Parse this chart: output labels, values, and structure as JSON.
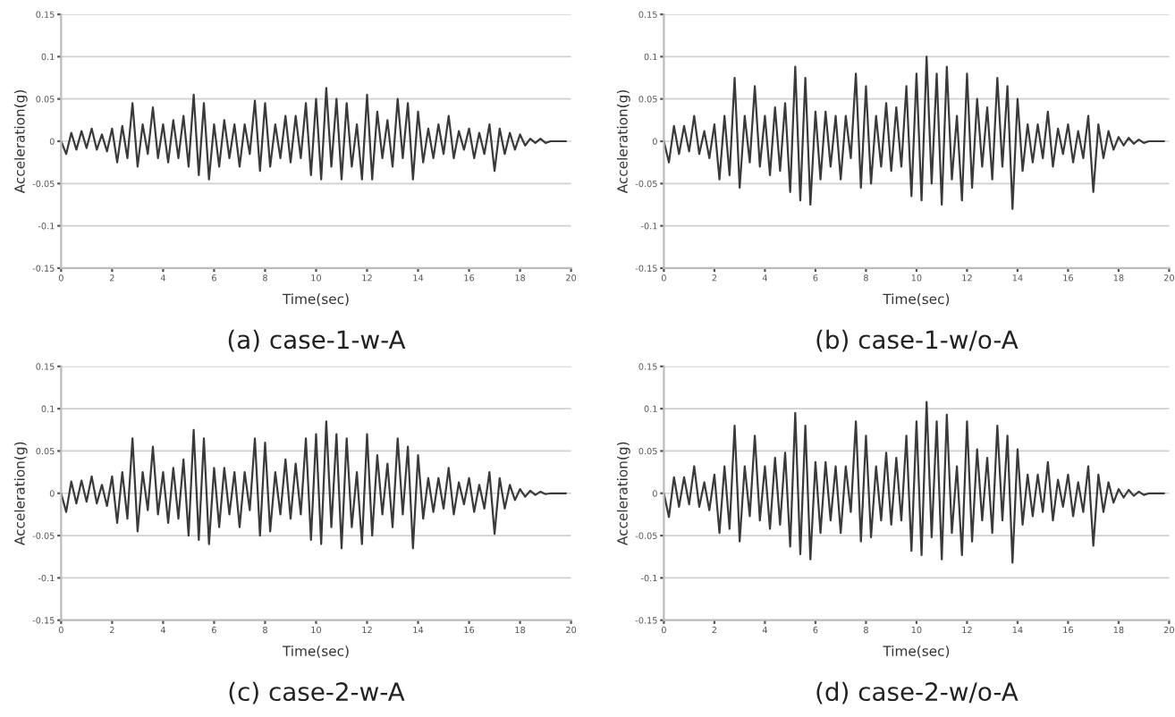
{
  "chart_data": [
    {
      "type": "line",
      "title": "(a) case-1-w-A",
      "xlabel": "Time(sec)",
      "ylabel": "Acceleration(g)",
      "xlim": [
        0,
        20
      ],
      "xticks": [
        0,
        2,
        4,
        6,
        8,
        10,
        12,
        14,
        16,
        18,
        20
      ],
      "ylim": [
        -0.15,
        0.15
      ],
      "yticks": [
        -0.15,
        -0.1,
        -0.05,
        0,
        0.05,
        0.1,
        0.15
      ],
      "grid": "y",
      "x": [
        0,
        0.2,
        0.4,
        0.6,
        0.8,
        1,
        1.2,
        1.4,
        1.6,
        1.8,
        2,
        2.2,
        2.4,
        2.6,
        2.8,
        3,
        3.2,
        3.4,
        3.6,
        3.8,
        4,
        4.2,
        4.4,
        4.6,
        4.8,
        5,
        5.2,
        5.4,
        5.6,
        5.8,
        6,
        6.2,
        6.4,
        6.6,
        6.8,
        7,
        7.2,
        7.4,
        7.6,
        7.8,
        8,
        8.2,
        8.4,
        8.6,
        8.8,
        9,
        9.2,
        9.4,
        9.6,
        9.8,
        10,
        10.2,
        10.4,
        10.6,
        10.8,
        11,
        11.2,
        11.4,
        11.6,
        11.8,
        12,
        12.2,
        12.4,
        12.6,
        12.8,
        13,
        13.2,
        13.4,
        13.6,
        13.8,
        14,
        14.2,
        14.4,
        14.6,
        14.8,
        15,
        15.2,
        15.4,
        15.6,
        15.8,
        16,
        16.2,
        16.4,
        16.6,
        16.8,
        17,
        17.2,
        17.4,
        17.6,
        17.8,
        18,
        18.2,
        18.4,
        18.6,
        18.8,
        19,
        19.2,
        19.4,
        19.6,
        19.8
      ],
      "series": [
        {
          "color": "#3a3a3a",
          "values": [
            0,
            -0.015,
            0.01,
            -0.01,
            0.012,
            -0.008,
            0.015,
            -0.01,
            0.008,
            -0.012,
            0.015,
            -0.025,
            0.018,
            -0.02,
            0.045,
            -0.03,
            0.02,
            -0.015,
            0.04,
            -0.02,
            0.02,
            -0.025,
            0.025,
            -0.02,
            0.03,
            -0.03,
            0.055,
            -0.04,
            0.045,
            -0.045,
            0.02,
            -0.03,
            0.025,
            -0.02,
            0.02,
            -0.03,
            0.02,
            -0.015,
            0.048,
            -0.035,
            0.045,
            -0.03,
            0.02,
            -0.02,
            0.03,
            -0.025,
            0.03,
            -0.02,
            0.045,
            -0.04,
            0.05,
            -0.045,
            0.063,
            -0.03,
            0.05,
            -0.045,
            0.045,
            -0.03,
            0.02,
            -0.045,
            0.055,
            -0.045,
            0.035,
            -0.02,
            0.025,
            -0.03,
            0.05,
            -0.02,
            0.045,
            -0.045,
            0.035,
            -0.025,
            0.015,
            -0.02,
            0.02,
            -0.015,
            0.03,
            -0.02,
            0.012,
            -0.01,
            0.015,
            -0.02,
            0.01,
            -0.015,
            0.02,
            -0.035,
            0.015,
            -0.015,
            0.01,
            -0.01,
            0.008,
            -0.005,
            0.003,
            -0.002,
            0.003,
            -0.002,
            0,
            0,
            0,
            0
          ]
        }
      ]
    },
    {
      "type": "line",
      "title": "(b) case-1-w/o-A",
      "xlabel": "Time(sec)",
      "ylabel": "Acceleration(g)",
      "xlim": [
        0,
        20
      ],
      "xticks": [
        0,
        2,
        4,
        6,
        8,
        10,
        12,
        14,
        16,
        18,
        20
      ],
      "ylim": [
        -0.15,
        0.15
      ],
      "yticks": [
        -0.15,
        -0.1,
        -0.05,
        0,
        0.05,
        0.1,
        0.15
      ],
      "grid": "y",
      "x": [
        0,
        0.2,
        0.4,
        0.6,
        0.8,
        1,
        1.2,
        1.4,
        1.6,
        1.8,
        2,
        2.2,
        2.4,
        2.6,
        2.8,
        3,
        3.2,
        3.4,
        3.6,
        3.8,
        4,
        4.2,
        4.4,
        4.6,
        4.8,
        5,
        5.2,
        5.4,
        5.6,
        5.8,
        6,
        6.2,
        6.4,
        6.6,
        6.8,
        7,
        7.2,
        7.4,
        7.6,
        7.8,
        8,
        8.2,
        8.4,
        8.6,
        8.8,
        9,
        9.2,
        9.4,
        9.6,
        9.8,
        10,
        10.2,
        10.4,
        10.6,
        10.8,
        11,
        11.2,
        11.4,
        11.6,
        11.8,
        12,
        12.2,
        12.4,
        12.6,
        12.8,
        13,
        13.2,
        13.4,
        13.6,
        13.8,
        14,
        14.2,
        14.4,
        14.6,
        14.8,
        15,
        15.2,
        15.4,
        15.6,
        15.8,
        16,
        16.2,
        16.4,
        16.6,
        16.8,
        17,
        17.2,
        17.4,
        17.6,
        17.8,
        18,
        18.2,
        18.4,
        18.6,
        18.8,
        19,
        19.2,
        19.4,
        19.6,
        19.8
      ],
      "series": [
        {
          "color": "#3a3a3a",
          "values": [
            0,
            -0.025,
            0.018,
            -0.015,
            0.018,
            -0.012,
            0.03,
            -0.015,
            0.012,
            -0.02,
            0.02,
            -0.045,
            0.03,
            -0.04,
            0.075,
            -0.055,
            0.03,
            -0.025,
            0.065,
            -0.03,
            0.03,
            -0.04,
            0.04,
            -0.035,
            0.045,
            -0.06,
            0.088,
            -0.07,
            0.075,
            -0.075,
            0.035,
            -0.045,
            0.035,
            -0.03,
            0.03,
            -0.045,
            0.03,
            -0.02,
            0.08,
            -0.055,
            0.065,
            -0.05,
            0.03,
            -0.03,
            0.045,
            -0.035,
            0.04,
            -0.03,
            0.065,
            -0.065,
            0.08,
            -0.07,
            0.1,
            -0.05,
            0.08,
            -0.075,
            0.088,
            -0.045,
            0.03,
            -0.07,
            0.08,
            -0.055,
            0.05,
            -0.03,
            0.04,
            -0.045,
            0.075,
            -0.03,
            0.065,
            -0.08,
            0.05,
            -0.035,
            0.02,
            -0.025,
            0.02,
            -0.02,
            0.035,
            -0.03,
            0.015,
            -0.015,
            0.02,
            -0.025,
            0.012,
            -0.02,
            0.03,
            -0.06,
            0.02,
            -0.02,
            0.012,
            -0.01,
            0.005,
            -0.005,
            0.004,
            -0.003,
            0.002,
            -0.002,
            0,
            0,
            0,
            0
          ]
        }
      ]
    },
    {
      "type": "line",
      "title": "(c) case-2-w-A",
      "xlabel": "Time(sec)",
      "ylabel": "Acceleration(g)",
      "xlim": [
        0,
        20
      ],
      "xticks": [
        0,
        2,
        4,
        6,
        8,
        10,
        12,
        14,
        16,
        18,
        20
      ],
      "ylim": [
        -0.15,
        0.15
      ],
      "yticks": [
        -0.15,
        -0.1,
        -0.05,
        0,
        0.05,
        0.1,
        0.15
      ],
      "grid": "y",
      "x": [
        0,
        0.2,
        0.4,
        0.6,
        0.8,
        1,
        1.2,
        1.4,
        1.6,
        1.8,
        2,
        2.2,
        2.4,
        2.6,
        2.8,
        3,
        3.2,
        3.4,
        3.6,
        3.8,
        4,
        4.2,
        4.4,
        4.6,
        4.8,
        5,
        5.2,
        5.4,
        5.6,
        5.8,
        6,
        6.2,
        6.4,
        6.6,
        6.8,
        7,
        7.2,
        7.4,
        7.6,
        7.8,
        8,
        8.2,
        8.4,
        8.6,
        8.8,
        9,
        9.2,
        9.4,
        9.6,
        9.8,
        10,
        10.2,
        10.4,
        10.6,
        10.8,
        11,
        11.2,
        11.4,
        11.6,
        11.8,
        12,
        12.2,
        12.4,
        12.6,
        12.8,
        13,
        13.2,
        13.4,
        13.6,
        13.8,
        14,
        14.2,
        14.4,
        14.6,
        14.8,
        15,
        15.2,
        15.4,
        15.6,
        15.8,
        16,
        16.2,
        16.4,
        16.6,
        16.8,
        17,
        17.2,
        17.4,
        17.6,
        17.8,
        18,
        18.2,
        18.4,
        18.6,
        18.8,
        19,
        19.2,
        19.4,
        19.6,
        19.8
      ],
      "series": [
        {
          "color": "#3a3a3a",
          "values": [
            0,
            -0.022,
            0.014,
            -0.012,
            0.015,
            -0.01,
            0.02,
            -0.012,
            0.01,
            -0.015,
            0.02,
            -0.035,
            0.025,
            -0.03,
            0.065,
            -0.045,
            0.025,
            -0.02,
            0.055,
            -0.025,
            0.025,
            -0.035,
            0.03,
            -0.03,
            0.04,
            -0.05,
            0.075,
            -0.055,
            0.065,
            -0.06,
            0.03,
            -0.04,
            0.03,
            -0.025,
            0.025,
            -0.04,
            0.025,
            -0.02,
            0.065,
            -0.05,
            0.06,
            -0.045,
            0.025,
            -0.025,
            0.04,
            -0.03,
            0.035,
            -0.025,
            0.065,
            -0.055,
            0.07,
            -0.06,
            0.085,
            -0.04,
            0.07,
            -0.065,
            0.065,
            -0.04,
            0.025,
            -0.06,
            0.07,
            -0.05,
            0.045,
            -0.025,
            0.035,
            -0.04,
            0.065,
            -0.025,
            0.055,
            -0.065,
            0.045,
            -0.03,
            0.018,
            -0.022,
            0.018,
            -0.018,
            0.03,
            -0.025,
            0.013,
            -0.013,
            0.018,
            -0.022,
            0.01,
            -0.018,
            0.025,
            -0.048,
            0.018,
            -0.018,
            0.01,
            -0.008,
            0.005,
            -0.004,
            0.003,
            -0.002,
            0.002,
            -0.001,
            0,
            0,
            0,
            0
          ]
        }
      ]
    },
    {
      "type": "line",
      "title": "(d) case-2-w/o-A",
      "xlabel": "Time(sec)",
      "ylabel": "Acceleration(g)",
      "xlim": [
        0,
        20
      ],
      "xticks": [
        0,
        2,
        4,
        6,
        8,
        10,
        12,
        14,
        16,
        18,
        20
      ],
      "ylim": [
        -0.15,
        0.15
      ],
      "yticks": [
        -0.15,
        -0.1,
        -0.05,
        0,
        0.05,
        0.1,
        0.15
      ],
      "grid": "y",
      "x": [
        0,
        0.2,
        0.4,
        0.6,
        0.8,
        1,
        1.2,
        1.4,
        1.6,
        1.8,
        2,
        2.2,
        2.4,
        2.6,
        2.8,
        3,
        3.2,
        3.4,
        3.6,
        3.8,
        4,
        4.2,
        4.4,
        4.6,
        4.8,
        5,
        5.2,
        5.4,
        5.6,
        5.8,
        6,
        6.2,
        6.4,
        6.6,
        6.8,
        7,
        7.2,
        7.4,
        7.6,
        7.8,
        8,
        8.2,
        8.4,
        8.6,
        8.8,
        9,
        9.2,
        9.4,
        9.6,
        9.8,
        10,
        10.2,
        10.4,
        10.6,
        10.8,
        11,
        11.2,
        11.4,
        11.6,
        11.8,
        12,
        12.2,
        12.4,
        12.6,
        12.8,
        13,
        13.2,
        13.4,
        13.6,
        13.8,
        14,
        14.2,
        14.4,
        14.6,
        14.8,
        15,
        15.2,
        15.4,
        15.6,
        15.8,
        16,
        16.2,
        16.4,
        16.6,
        16.8,
        17,
        17.2,
        17.4,
        17.6,
        17.8,
        18,
        18.2,
        18.4,
        18.6,
        18.8,
        19,
        19.2,
        19.4,
        19.6,
        19.8
      ],
      "series": [
        {
          "color": "#3a3a3a",
          "values": [
            0,
            -0.028,
            0.019,
            -0.016,
            0.019,
            -0.013,
            0.032,
            -0.016,
            0.013,
            -0.02,
            0.022,
            -0.047,
            0.032,
            -0.042,
            0.08,
            -0.057,
            0.032,
            -0.027,
            0.068,
            -0.032,
            0.032,
            -0.042,
            0.042,
            -0.037,
            0.048,
            -0.063,
            0.095,
            -0.072,
            0.08,
            -0.078,
            0.037,
            -0.047,
            0.037,
            -0.032,
            0.032,
            -0.047,
            0.032,
            -0.022,
            0.085,
            -0.057,
            0.068,
            -0.052,
            0.032,
            -0.032,
            0.048,
            -0.037,
            0.042,
            -0.032,
            0.068,
            -0.068,
            0.085,
            -0.073,
            0.108,
            -0.052,
            0.085,
            -0.078,
            0.093,
            -0.047,
            0.032,
            -0.073,
            0.085,
            -0.057,
            0.052,
            -0.032,
            0.042,
            -0.047,
            0.08,
            -0.032,
            0.068,
            -0.082,
            0.052,
            -0.037,
            0.022,
            -0.027,
            0.022,
            -0.022,
            0.037,
            -0.032,
            0.016,
            -0.016,
            0.022,
            -0.027,
            0.013,
            -0.022,
            0.032,
            -0.062,
            0.022,
            -0.022,
            0.013,
            -0.011,
            0.005,
            -0.005,
            0.004,
            -0.003,
            0.002,
            -0.002,
            0,
            0,
            0,
            0
          ]
        }
      ]
    }
  ]
}
